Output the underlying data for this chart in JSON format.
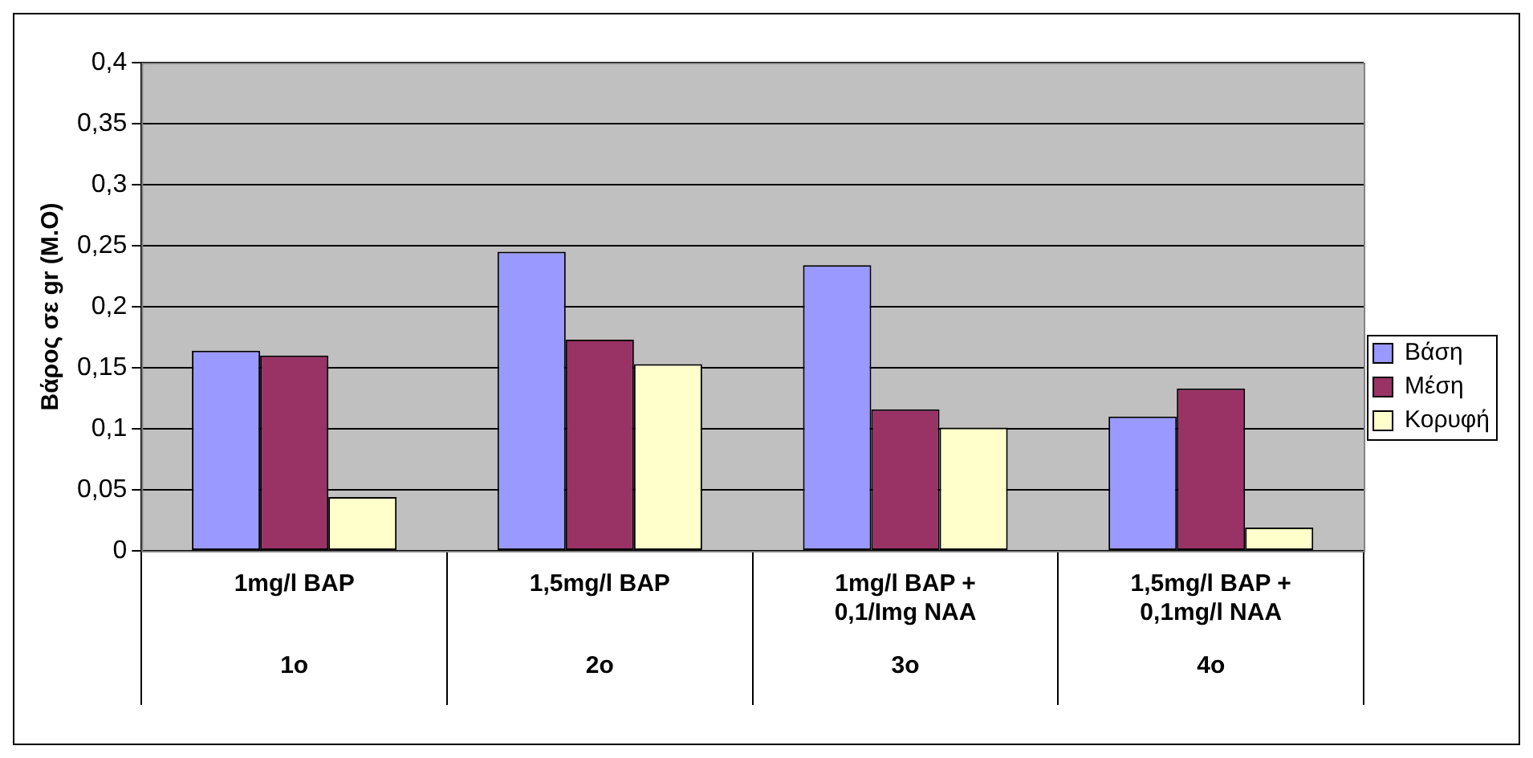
{
  "chart_data": {
    "type": "bar",
    "ylabel": "Βάρος σε gr (Μ.Ο)",
    "categories": [
      "1mg/l BAP",
      "1,5mg/l BAP",
      "1mg/l BAP + 0,1/Img NAA",
      "1,5mg/l BAP + 0,1mg/l NAA"
    ],
    "series": [
      {
        "name": "Βάση",
        "color": "#9999ff",
        "values": [
          0.164,
          0.245,
          0.234,
          0.11
        ]
      },
      {
        "name": "Μέση",
        "color": "#993366",
        "values": [
          0.16,
          0.173,
          0.116,
          0.133
        ]
      },
      {
        "name": "Κορυφή",
        "color": "#ffffcc",
        "values": [
          0.044,
          0.153,
          0.101,
          0.019
        ]
      }
    ],
    "annotations": [
      "1o",
      "2o",
      "3o",
      "4o"
    ],
    "ylim": [
      0,
      0.4
    ],
    "yticks": [
      {
        "value": 0,
        "label": "0"
      },
      {
        "value": 0.05,
        "label": "0,05"
      },
      {
        "value": 0.1,
        "label": "0,1"
      },
      {
        "value": 0.15,
        "label": "0,15"
      },
      {
        "value": 0.2,
        "label": "0,2"
      },
      {
        "value": 0.25,
        "label": "0,25"
      },
      {
        "value": 0.3,
        "label": "0,3"
      },
      {
        "value": 0.35,
        "label": "0,35"
      },
      {
        "value": 0.4,
        "label": "0,4"
      }
    ],
    "grid": "y",
    "legend": "right"
  }
}
